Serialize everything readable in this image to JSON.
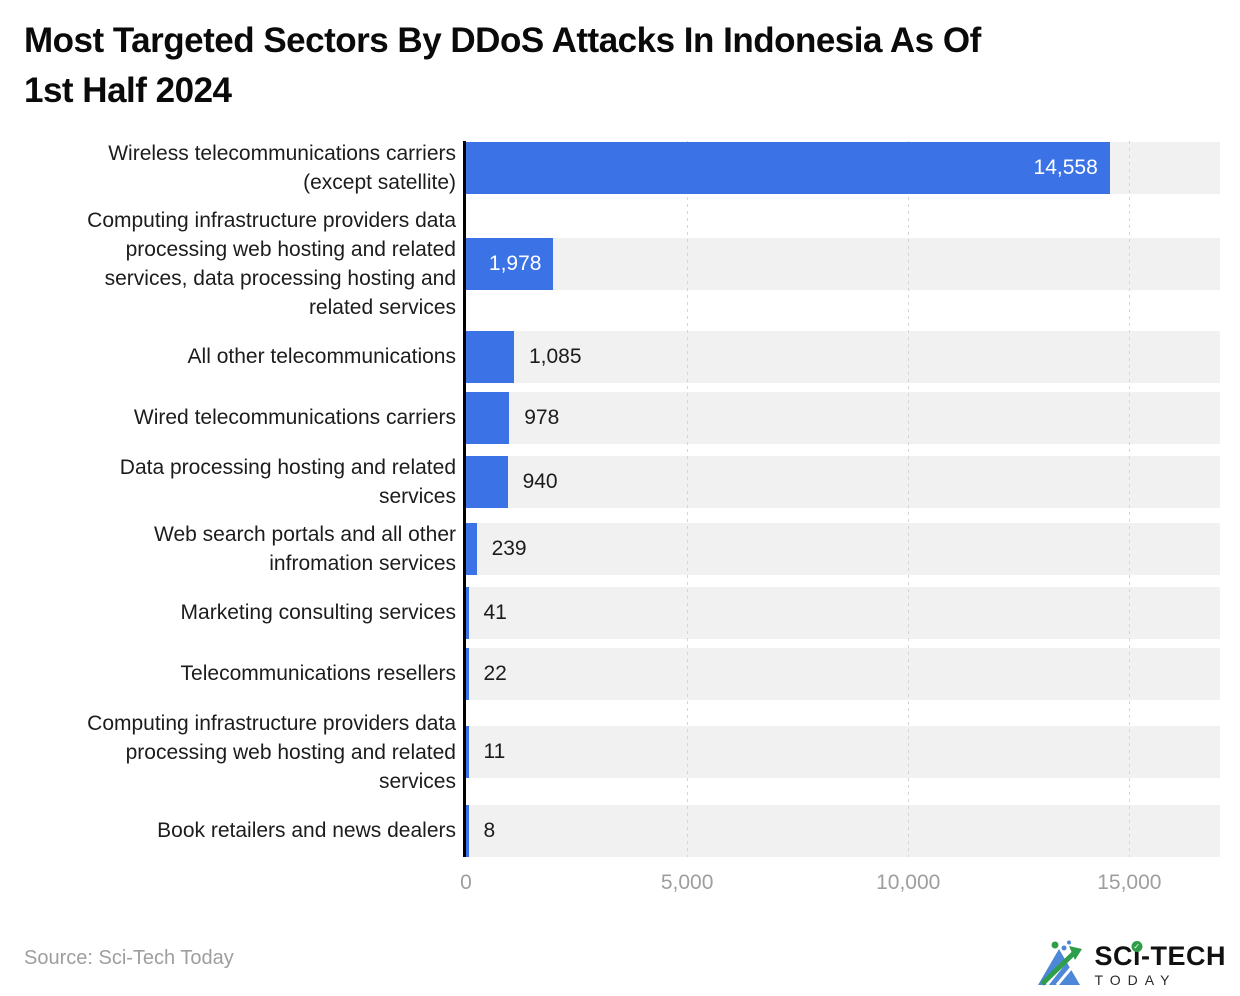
{
  "chart_data": {
    "type": "bar",
    "orientation": "horizontal",
    "title": "Most Targeted Sectors By DDoS Attacks In Indonesia As Of\n1st Half 2024",
    "categories": [
      "Wireless telecommunications carriers\n(except satellite)",
      "Computing infrastructure providers data\nprocessing web hosting and related\nservices, data processing hosting and\nrelated services",
      "All other telecommunications",
      "Wired telecommunications carriers",
      "Data processing hosting and related\nservices",
      "Web search portals and all other\ninfromation services",
      "Marketing consulting services",
      "Telecommunications resellers",
      "Computing infrastructure providers data\nprocessing web hosting and related\nservices",
      "Book retailers and news dealers"
    ],
    "values": [
      14558,
      1978,
      1085,
      978,
      940,
      239,
      41,
      22,
      11,
      8
    ],
    "value_labels": [
      "14,558",
      "1,978",
      "1,085",
      "978",
      "940",
      "239",
      "41",
      "22",
      "11",
      "8"
    ],
    "x_ticks": [
      {
        "value": 0,
        "label": "0"
      },
      {
        "value": 5000,
        "label": "5,000"
      },
      {
        "value": 10000,
        "label": "10,000"
      },
      {
        "value": 15000,
        "label": "15,000"
      }
    ],
    "xlim": [
      0,
      17050
    ],
    "xlabel": "",
    "ylabel": "",
    "grid": "vertical-dashed",
    "legend": "none",
    "colors": {
      "bar": "#3b73e6",
      "row_band": "#f1f1f1",
      "axis_line": "#000000",
      "gridline": "#d5d5d5",
      "tick_label": "#9e9e9e",
      "value_inside": "#ffffff",
      "value_outside": "#1c1c1c",
      "title": "#0a0a0a"
    }
  },
  "footer": {
    "source": "Source: Sci-Tech Today",
    "logo": {
      "brand": "SCi-TECH",
      "subtext": "TODAY",
      "check_icon": "✓"
    }
  }
}
